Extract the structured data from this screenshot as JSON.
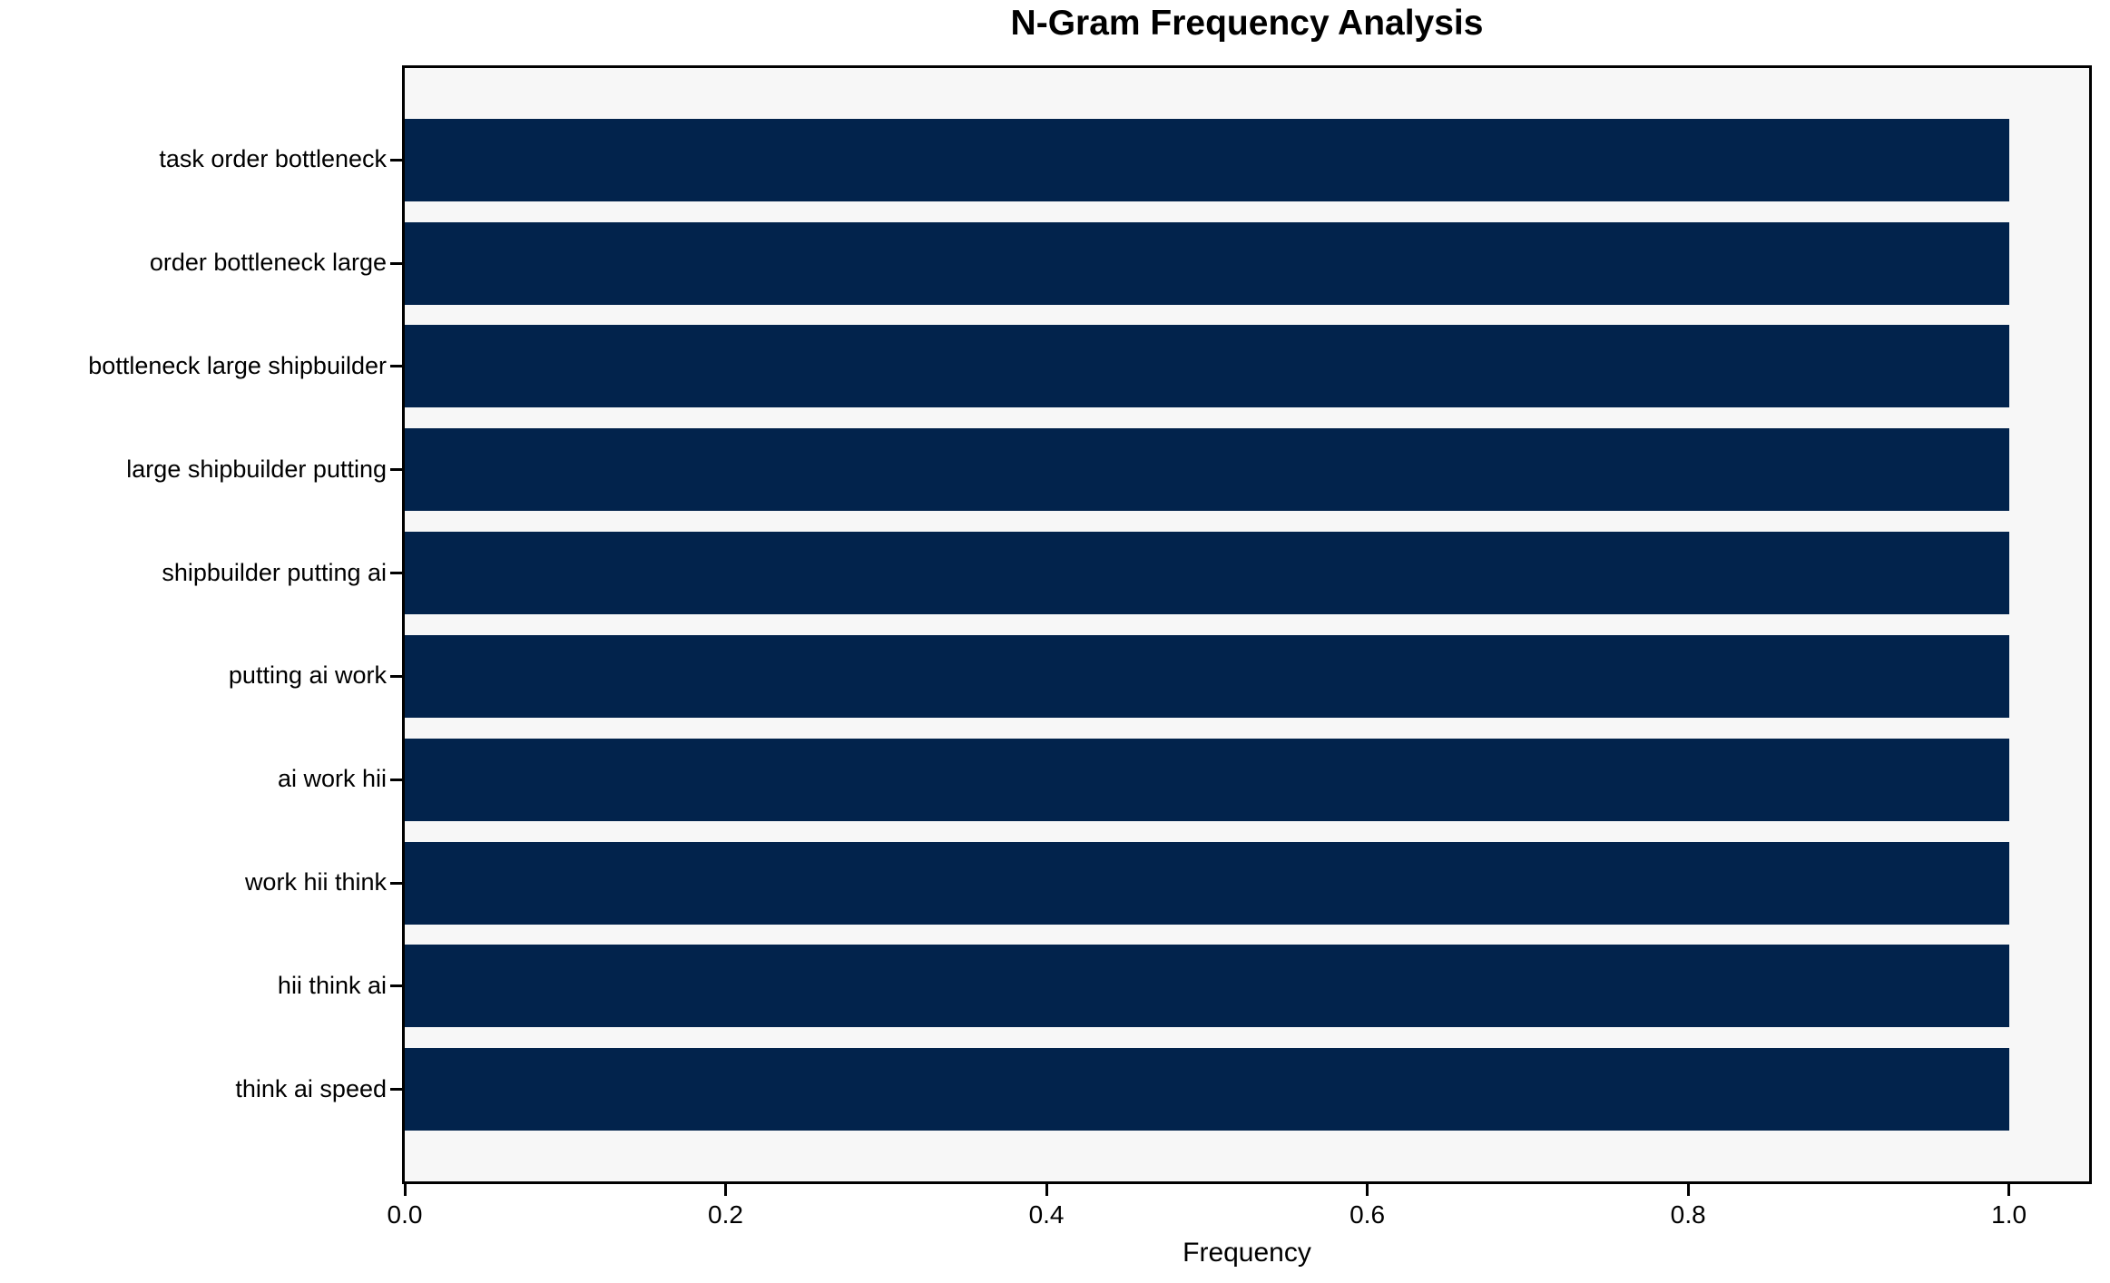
{
  "chart_data": {
    "type": "bar",
    "orientation": "horizontal",
    "title": "N-Gram Frequency Analysis",
    "xlabel": "Frequency",
    "ylabel": "",
    "categories": [
      "task order bottleneck",
      "order bottleneck large",
      "bottleneck large shipbuilder",
      "large shipbuilder putting",
      "shipbuilder putting ai",
      "putting ai work",
      "ai work hii",
      "work hii think",
      "hii think ai",
      "think ai speed"
    ],
    "values": [
      1.0,
      1.0,
      1.0,
      1.0,
      1.0,
      1.0,
      1.0,
      1.0,
      1.0,
      1.0
    ],
    "xticks": [
      0.0,
      0.2,
      0.4,
      0.6,
      0.8,
      1.0
    ],
    "xtick_labels": [
      "0.0",
      "0.2",
      "0.4",
      "0.6",
      "0.8",
      "1.0"
    ],
    "xlim": [
      0,
      1.05
    ],
    "bar_relative_height": 0.8,
    "grid": false,
    "legend": "none",
    "colors": {
      "bar": "#02234C",
      "plot_background": "#F7F7F7",
      "spine": "#000000",
      "text": "#000000",
      "figure_background": "#FFFFFF"
    }
  }
}
